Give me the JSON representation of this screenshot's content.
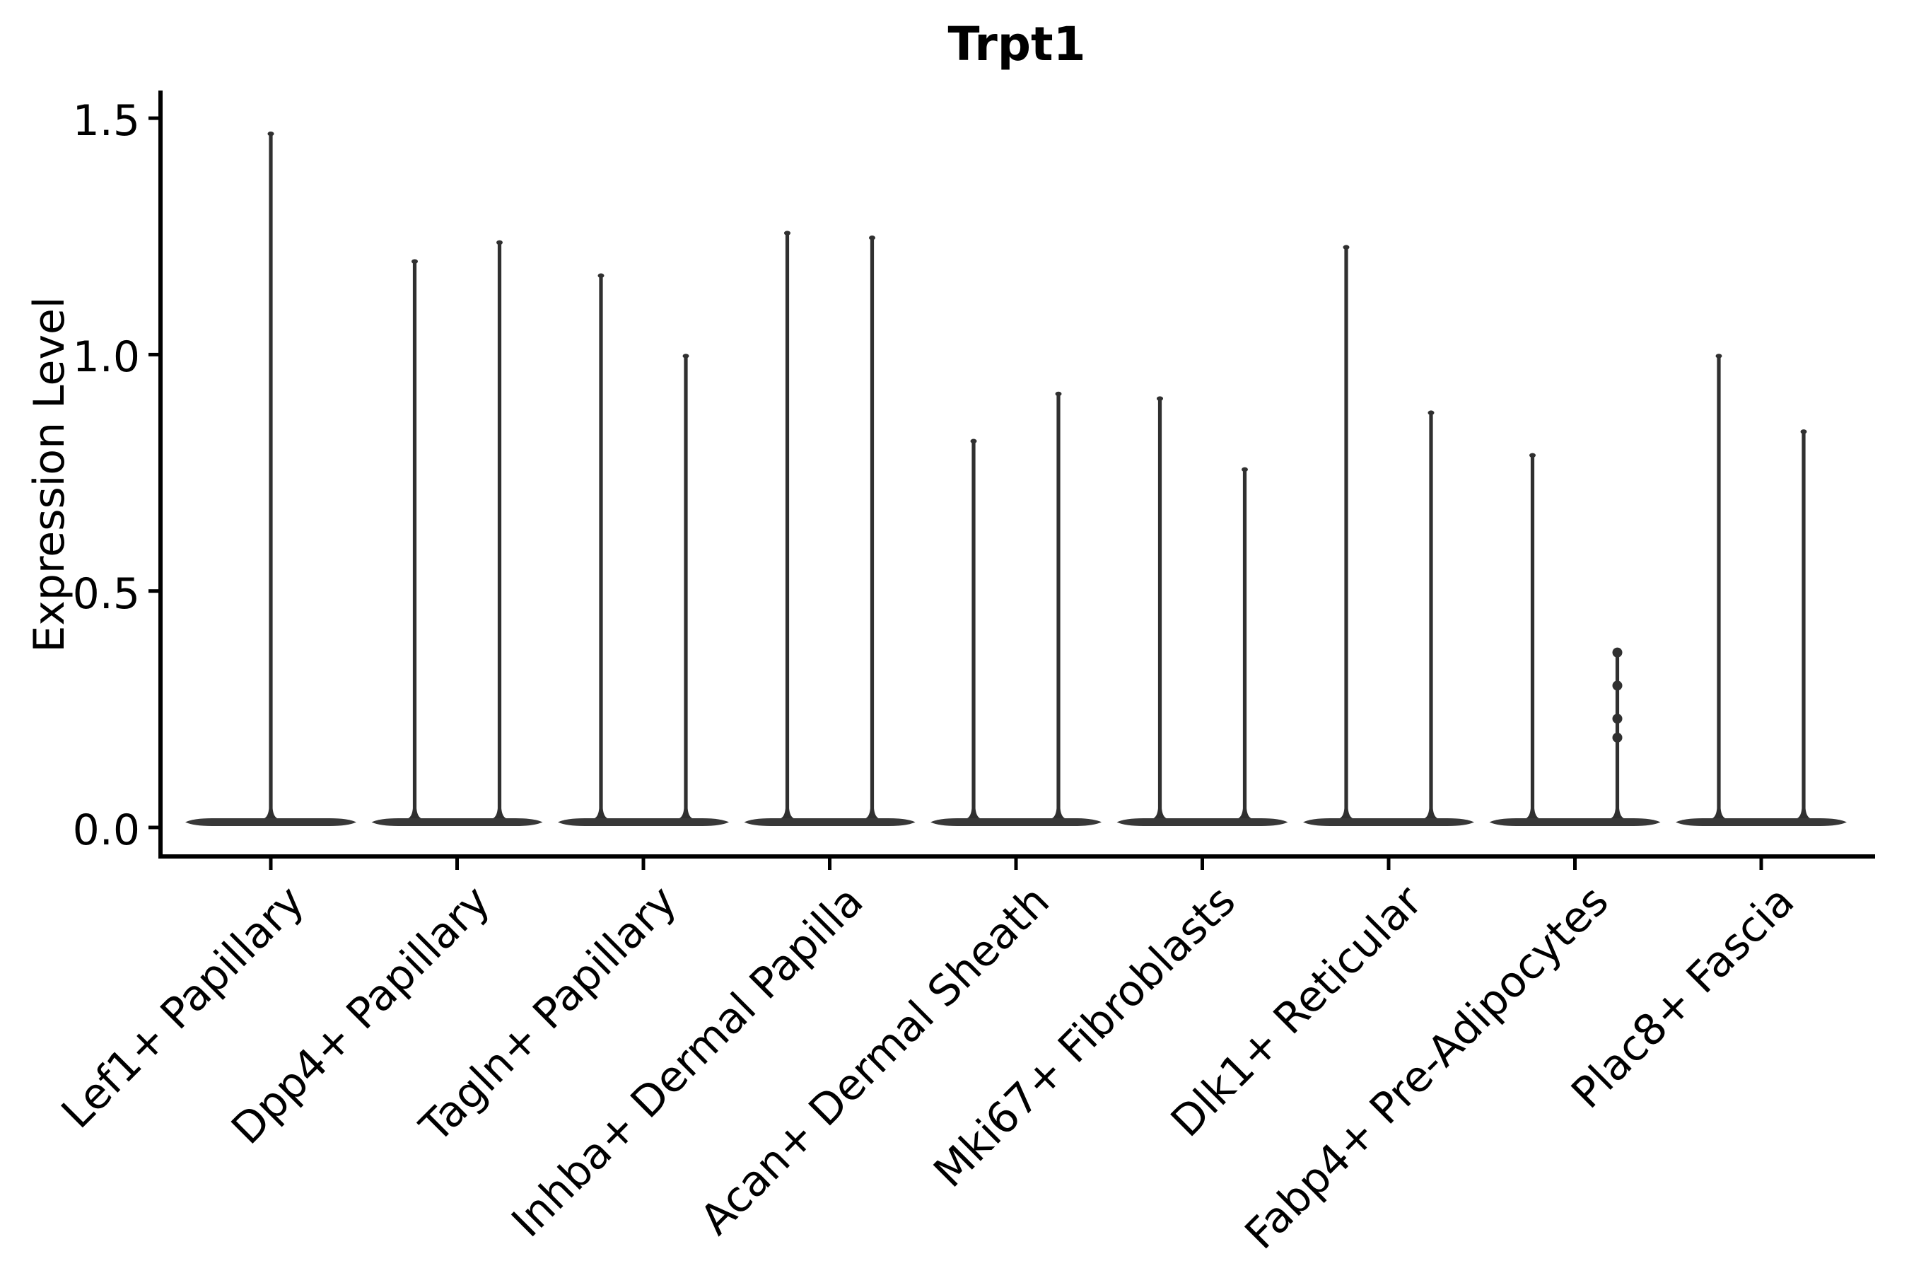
{
  "page": {
    "background": "#ffffff"
  },
  "chart_data": {
    "type": "violin",
    "title": "Trpt1",
    "ylabel": "Expression Level",
    "xlabel": "",
    "grid": false,
    "legend": null,
    "yticks": [
      0.0,
      0.5,
      1.0,
      1.5
    ],
    "ytick_labels": [
      "0.0",
      "0.5",
      "1.0",
      "1.5"
    ],
    "ylim": [
      -0.06,
      1.56
    ],
    "categories": [
      "Lef1+ Papillary",
      "Dpp4+ Papillary",
      "Tagln+ Papillary",
      "Inhba+ Dermal Papilla",
      "Acan+ Dermal Sheath",
      "Mki67+ Fibroblasts",
      "Dlk1+ Reticular",
      "Fabp4+ Pre-Adipocytes",
      "Plac8+ Fascia"
    ],
    "violins": [
      {
        "category": "Lef1+ Papillary",
        "maxima": [
          1.47
        ]
      },
      {
        "category": "Dpp4+ Papillary",
        "maxima": [
          1.2,
          1.24
        ]
      },
      {
        "category": "Tagln+ Papillary",
        "maxima": [
          1.17,
          1.0
        ]
      },
      {
        "category": "Inhba+ Dermal Papilla",
        "maxima": [
          1.26,
          1.25
        ]
      },
      {
        "category": "Acan+ Dermal Sheath",
        "maxima": [
          0.82,
          0.92
        ]
      },
      {
        "category": "Mki67+ Fibroblasts",
        "maxima": [
          0.91,
          0.76
        ]
      },
      {
        "category": "Dlk1+ Reticular",
        "maxima": [
          1.23,
          0.88
        ]
      },
      {
        "category": "Fabp4+ Pre-Adipocytes",
        "maxima": [
          0.79,
          0.37
        ],
        "visible_points_on_second": [
          0.37,
          0.3,
          0.23,
          0.19
        ]
      },
      {
        "category": "Plac8+ Fascia",
        "maxima": [
          1.0,
          0.84
        ]
      }
    ],
    "description": "Most expression values sit at 0 (wide flat violin base); thin needles rise to each violin maximum.",
    "colors": {
      "violin": "#383838",
      "needle": "#303030",
      "axis": "#000000",
      "text": "#000000"
    }
  }
}
